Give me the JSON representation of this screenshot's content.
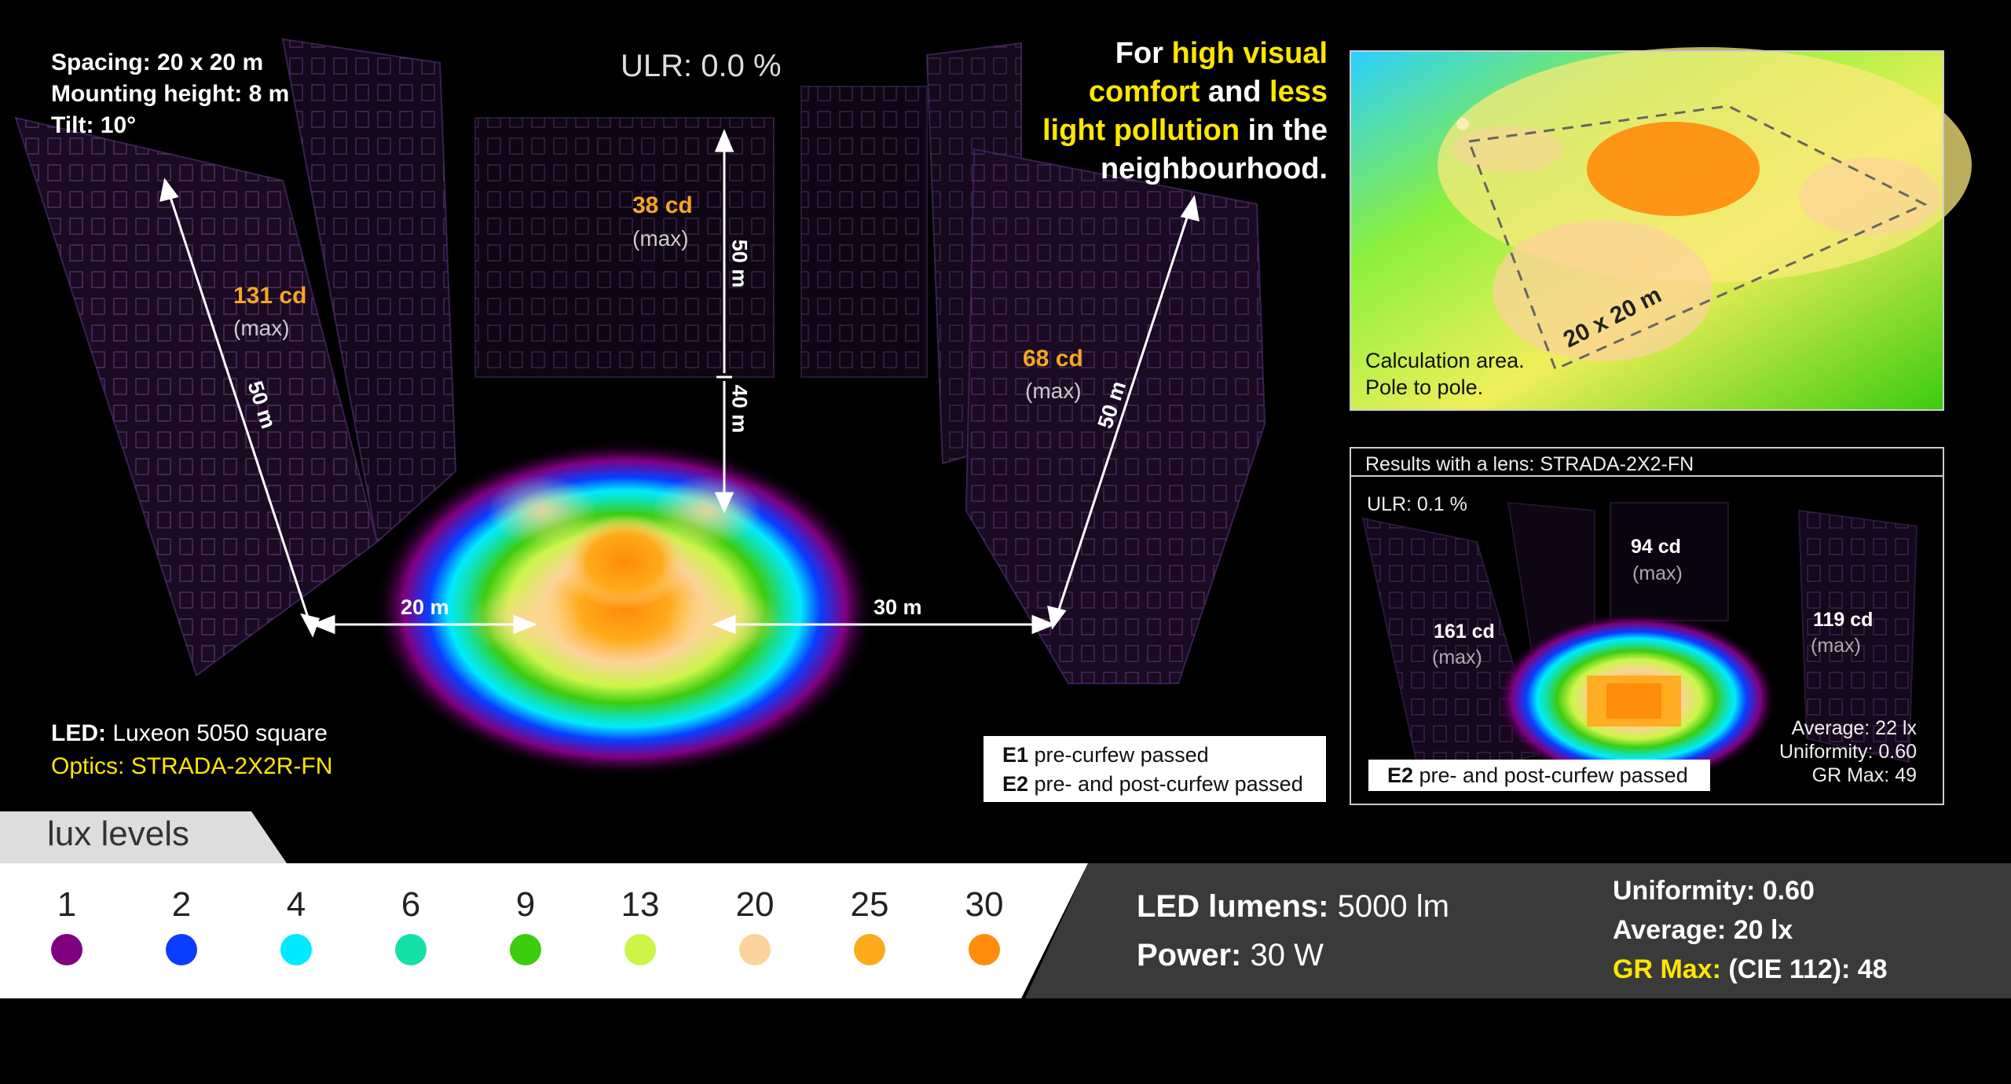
{
  "specs": {
    "spacing": "Spacing: 20 x 20 m",
    "mounting": "Mounting height: 8 m",
    "tilt": "Tilt: 10°"
  },
  "ulr": "ULR: 0.0 %",
  "slogan": {
    "l1a": "For ",
    "l1b": "high visual",
    "l2a": "comfort",
    "l2b": " and ",
    "l2c": "less",
    "l3a": "light pollution",
    "l3b": " in the",
    "l4": "neighbourhood."
  },
  "buildings": {
    "left": {
      "cd": "131 cd",
      "max": "(max)",
      "height": "50 m",
      "dist": "20 m"
    },
    "center": {
      "cd": "38 cd",
      "max": "(max)",
      "height": "50 m",
      "dist": "40 m"
    },
    "right": {
      "cd": "68 cd",
      "max": "(max)",
      "height": "50 m",
      "dist": "30 m"
    }
  },
  "led": {
    "label": "LED:",
    "value": " Luxeon 5050 square",
    "optics": "Optics: STRADA-2X2R-FN"
  },
  "pass_main": {
    "e1": "E1",
    "e1_text": " pre-curfew passed",
    "e2": "E2",
    "e2_text": " pre- and post-curfew passed"
  },
  "calc": {
    "area": "20 x 20 m",
    "caption1": "Calculation area.",
    "caption2": "Pole to pole."
  },
  "lens": {
    "title": "Results with a lens: STRADA-2X2-FN",
    "ulr": "ULR: 0.1 %",
    "left_cd": "161 cd",
    "center_cd": "94 cd",
    "right_cd": "119 cd",
    "max": "(max)",
    "average": "Average: 22 lx",
    "uniformity": "Uniformity: 0.60",
    "gr": "GR Max: 49",
    "e2": "E2",
    "e2_text": " pre- and post-curfew passed"
  },
  "lux": {
    "title": "lux levels",
    "levels": [
      {
        "value": "1",
        "color": "#800080"
      },
      {
        "value": "2",
        "color": "#0a3dff"
      },
      {
        "value": "4",
        "color": "#00eaff"
      },
      {
        "value": "6",
        "color": "#14e0a8"
      },
      {
        "value": "9",
        "color": "#3ccc10"
      },
      {
        "value": "13",
        "color": "#ccf54a"
      },
      {
        "value": "20",
        "color": "#fcd39a"
      },
      {
        "value": "25",
        "color": "#ffaa1a"
      },
      {
        "value": "30",
        "color": "#ff8c0a"
      }
    ]
  },
  "stats": {
    "lumens_label": "LED lumens:",
    "lumens_value": " 5000 lm",
    "power_label": "Power:",
    "power_value": " 30 W",
    "uniformity": "Uniformity: 0.60",
    "average": "Average: 20 lx",
    "gr_label": "GR Max:",
    "gr_value": " (CIE 112): 48"
  }
}
